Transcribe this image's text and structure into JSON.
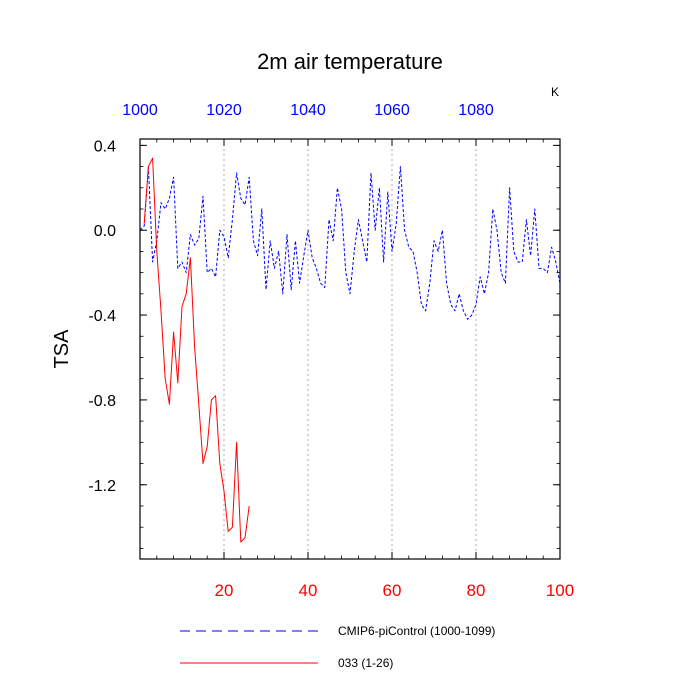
{
  "chart_data": {
    "type": "line",
    "title": "2m air temperature",
    "ylabel": "TSA",
    "top_axis_unit": "K",
    "xlim": [
      0,
      100
    ],
    "ylim": [
      -1.55,
      0.43
    ],
    "x_ticks": [
      20,
      40,
      60,
      80,
      100
    ],
    "x_tick_labels": [
      "20",
      "40",
      "60",
      "80",
      "100"
    ],
    "top_ticks": [
      1000,
      1020,
      1040,
      1060,
      1080
    ],
    "top_tick_labels": [
      "1000",
      "1020",
      "1040",
      "1060",
      "1080"
    ],
    "y_ticks": [
      0.4,
      0.0,
      -0.4,
      -0.8,
      -1.2
    ],
    "y_tick_labels": [
      "0.4",
      "0.0",
      "-0.4",
      "-0.8",
      "-1.2"
    ],
    "grid": "dotted vertical gridlines at bottom x ticks",
    "legend_position": "bottom",
    "series": [
      {
        "name": "CMIP6-piControl (1000-1099)",
        "color": "#0000ff",
        "dash": "dashed",
        "x": [
          0,
          1,
          2,
          3,
          4,
          5,
          6,
          7,
          8,
          9,
          10,
          11,
          12,
          13,
          14,
          15,
          16,
          17,
          18,
          19,
          20,
          21,
          22,
          23,
          24,
          25,
          26,
          27,
          28,
          29,
          30,
          31,
          32,
          33,
          34,
          35,
          36,
          37,
          38,
          39,
          40,
          41,
          42,
          43,
          44,
          45,
          46,
          47,
          48,
          49,
          50,
          51,
          52,
          53,
          54,
          55,
          56,
          57,
          58,
          59,
          60,
          61,
          62,
          63,
          64,
          65,
          66,
          67,
          68,
          69,
          70,
          71,
          72,
          73,
          74,
          75,
          76,
          77,
          78,
          79,
          80,
          81,
          82,
          83,
          84,
          85,
          86,
          87,
          88,
          89,
          90,
          91,
          92,
          93,
          94,
          95,
          96,
          97,
          98,
          99,
          100
        ],
        "y": [
          0.0,
          0.02,
          0.3,
          -0.15,
          -0.05,
          0.13,
          0.1,
          0.15,
          0.25,
          -0.18,
          -0.15,
          -0.2,
          -0.02,
          -0.07,
          -0.04,
          0.16,
          -0.2,
          -0.18,
          -0.22,
          0.0,
          -0.03,
          -0.13,
          0.05,
          0.27,
          0.15,
          0.12,
          0.25,
          -0.05,
          -0.12,
          0.1,
          -0.28,
          -0.05,
          -0.18,
          -0.1,
          -0.3,
          -0.02,
          -0.28,
          -0.05,
          -0.25,
          -0.12,
          0.0,
          -0.13,
          -0.18,
          -0.25,
          -0.27,
          0.05,
          -0.05,
          0.2,
          0.1,
          -0.2,
          -0.3,
          -0.1,
          0.05,
          -0.05,
          -0.15,
          0.27,
          0.0,
          0.2,
          -0.15,
          0.18,
          -0.1,
          0.03,
          0.3,
          0.0,
          -0.08,
          -0.1,
          -0.2,
          -0.35,
          -0.38,
          -0.25,
          -0.05,
          -0.1,
          0.0,
          -0.25,
          -0.35,
          -0.38,
          -0.3,
          -0.38,
          -0.42,
          -0.4,
          -0.35,
          -0.22,
          -0.3,
          -0.2,
          0.1,
          0.0,
          -0.2,
          -0.25,
          0.2,
          -0.1,
          -0.15,
          -0.15,
          0.05,
          -0.12,
          0.1,
          -0.18,
          -0.18,
          -0.2,
          -0.08,
          -0.15,
          -0.25
        ]
      },
      {
        "name": "033 (1-26)",
        "color": "#ff0000",
        "dash": "solid",
        "x": [
          1,
          2,
          3,
          4,
          5,
          6,
          7,
          8,
          9,
          10,
          11,
          12,
          13,
          14,
          15,
          16,
          17,
          18,
          19,
          20,
          21,
          22,
          23,
          24,
          25,
          26
        ],
        "y": [
          0.03,
          0.3,
          0.34,
          -0.1,
          -0.38,
          -0.7,
          -0.82,
          -0.48,
          -0.72,
          -0.36,
          -0.3,
          -0.13,
          -0.55,
          -0.82,
          -1.1,
          -1.02,
          -0.8,
          -0.78,
          -1.1,
          -1.23,
          -1.42,
          -1.4,
          -1.0,
          -1.47,
          -1.45,
          -1.3
        ]
      }
    ]
  }
}
